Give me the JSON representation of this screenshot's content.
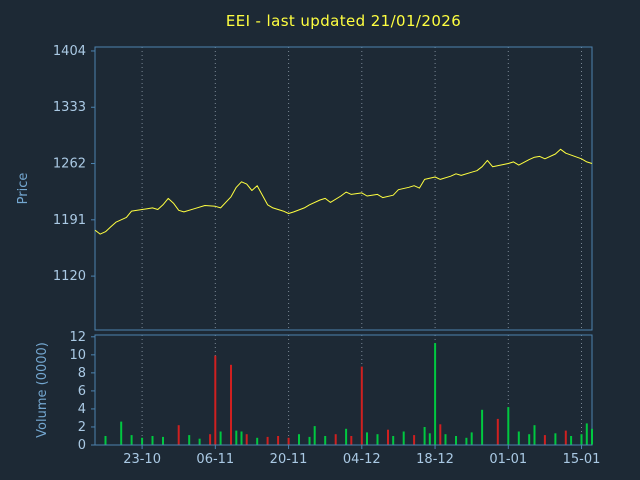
{
  "window": {
    "background": "#1d2935"
  },
  "chart_data": {
    "type": "line",
    "title": "EEI - last updated 21/01/2026",
    "legend_position": "none",
    "grid": "vertical-dotted",
    "colors": {
      "title": "#ffff40",
      "frame": "#4d83b0",
      "grid": "#7a8794",
      "tick_text": "#aac9e4",
      "label_text": "#74a7d0",
      "price_line": "#ffff40",
      "volume_up": "#00c840",
      "volume_down": "#d02020"
    },
    "x": {
      "lim": [
        0,
        95
      ],
      "ticks": [
        {
          "x": 9,
          "label": "23-10"
        },
        {
          "x": 23,
          "label": "06-11"
        },
        {
          "x": 37,
          "label": "20-11"
        },
        {
          "x": 51,
          "label": "04-12"
        },
        {
          "x": 65,
          "label": "18-12"
        },
        {
          "x": 79,
          "label": "01-01"
        },
        {
          "x": 93,
          "label": "15-01"
        }
      ]
    },
    "panels": [
      {
        "name": "price",
        "ylabel": "Price",
        "ylim": [
          1052,
          1409
        ],
        "yticks": [
          1120,
          1191,
          1262,
          1333,
          1404
        ],
        "series": [
          {
            "name": "EEI",
            "type": "line",
            "points": [
              [
                0,
                1178
              ],
              [
                1,
                1173
              ],
              [
                2,
                1176
              ],
              [
                3,
                1182
              ],
              [
                4,
                1188
              ],
              [
                6,
                1194
              ],
              [
                7,
                1202
              ],
              [
                9,
                1204
              ],
              [
                10,
                1205
              ],
              [
                11,
                1206
              ],
              [
                12,
                1204
              ],
              [
                13,
                1210
              ],
              [
                14,
                1218
              ],
              [
                15,
                1212
              ],
              [
                16,
                1203
              ],
              [
                17,
                1201
              ],
              [
                19,
                1205
              ],
              [
                21,
                1209
              ],
              [
                23,
                1208
              ],
              [
                24,
                1206
              ],
              [
                26,
                1220
              ],
              [
                27,
                1232
              ],
              [
                28,
                1239
              ],
              [
                29,
                1236
              ],
              [
                30,
                1228
              ],
              [
                31,
                1234
              ],
              [
                32,
                1222
              ],
              [
                33,
                1210
              ],
              [
                34,
                1206
              ],
              [
                36,
                1202
              ],
              [
                37,
                1199
              ],
              [
                38,
                1201
              ],
              [
                40,
                1206
              ],
              [
                41,
                1210
              ],
              [
                43,
                1216
              ],
              [
                44,
                1218
              ],
              [
                45,
                1213
              ],
              [
                47,
                1221
              ],
              [
                48,
                1226
              ],
              [
                49,
                1223
              ],
              [
                51,
                1225
              ],
              [
                52,
                1221
              ],
              [
                54,
                1223
              ],
              [
                55,
                1219
              ],
              [
                57,
                1222
              ],
              [
                58,
                1229
              ],
              [
                60,
                1232
              ],
              [
                61,
                1234
              ],
              [
                62,
                1231
              ],
              [
                63,
                1242
              ],
              [
                65,
                1245
              ],
              [
                66,
                1242
              ],
              [
                68,
                1246
              ],
              [
                69,
                1249
              ],
              [
                70,
                1247
              ],
              [
                72,
                1251
              ],
              [
                73,
                1253
              ],
              [
                74,
                1258
              ],
              [
                75,
                1266
              ],
              [
                76,
                1258
              ],
              [
                79,
                1262
              ],
              [
                80,
                1264
              ],
              [
                81,
                1260
              ],
              [
                83,
                1267
              ],
              [
                84,
                1270
              ],
              [
                85,
                1271
              ],
              [
                86,
                1268
              ],
              [
                88,
                1274
              ],
              [
                89,
                1280
              ],
              [
                90,
                1275
              ],
              [
                93,
                1268
              ],
              [
                94,
                1264
              ],
              [
                95,
                1262
              ]
            ]
          }
        ]
      },
      {
        "name": "volume",
        "ylabel": "Volume (0000)",
        "ylim": [
          0,
          12.2
        ],
        "yticks": [
          0,
          2,
          4,
          6,
          8,
          10,
          12
        ],
        "bars": [
          [
            2,
            1.0,
            "g"
          ],
          [
            5,
            2.6,
            "g"
          ],
          [
            7,
            1.1,
            "g"
          ],
          [
            9,
            0.8,
            "g"
          ],
          [
            11,
            1.0,
            "g"
          ],
          [
            13,
            0.9,
            "g"
          ],
          [
            16,
            2.2,
            "r"
          ],
          [
            18,
            1.1,
            "g"
          ],
          [
            20,
            0.7,
            "g"
          ],
          [
            22,
            1.2,
            "r"
          ],
          [
            23,
            9.9,
            "r"
          ],
          [
            24,
            1.5,
            "g"
          ],
          [
            26,
            8.9,
            "r"
          ],
          [
            27,
            1.6,
            "g"
          ],
          [
            28,
            1.5,
            "g"
          ],
          [
            29,
            1.2,
            "r"
          ],
          [
            31,
            0.8,
            "g"
          ],
          [
            33,
            0.9,
            "r"
          ],
          [
            35,
            1.0,
            "r"
          ],
          [
            37,
            0.8,
            "r"
          ],
          [
            39,
            1.2,
            "g"
          ],
          [
            41,
            0.9,
            "g"
          ],
          [
            42,
            2.1,
            "g"
          ],
          [
            44,
            1.0,
            "g"
          ],
          [
            46,
            1.2,
            "r"
          ],
          [
            48,
            1.8,
            "g"
          ],
          [
            49,
            1.0,
            "r"
          ],
          [
            51,
            8.7,
            "r"
          ],
          [
            52,
            1.4,
            "g"
          ],
          [
            54,
            1.2,
            "g"
          ],
          [
            56,
            1.7,
            "r"
          ],
          [
            57,
            1.0,
            "g"
          ],
          [
            59,
            1.5,
            "g"
          ],
          [
            61,
            1.1,
            "r"
          ],
          [
            63,
            2.0,
            "g"
          ],
          [
            64,
            1.3,
            "g"
          ],
          [
            65,
            11.3,
            "g"
          ],
          [
            66,
            2.3,
            "r"
          ],
          [
            67,
            1.2,
            "g"
          ],
          [
            69,
            1.0,
            "g"
          ],
          [
            71,
            0.8,
            "g"
          ],
          [
            72,
            1.4,
            "g"
          ],
          [
            74,
            3.9,
            "g"
          ],
          [
            77,
            2.9,
            "r"
          ],
          [
            79,
            4.2,
            "g"
          ],
          [
            81,
            1.5,
            "g"
          ],
          [
            83,
            1.2,
            "g"
          ],
          [
            84,
            2.2,
            "g"
          ],
          [
            86,
            1.1,
            "r"
          ],
          [
            88,
            1.3,
            "g"
          ],
          [
            90,
            1.6,
            "r"
          ],
          [
            91,
            1.0,
            "g"
          ],
          [
            93,
            1.2,
            "g"
          ],
          [
            94,
            2.4,
            "g"
          ],
          [
            95,
            1.8,
            "g"
          ]
        ]
      }
    ]
  }
}
